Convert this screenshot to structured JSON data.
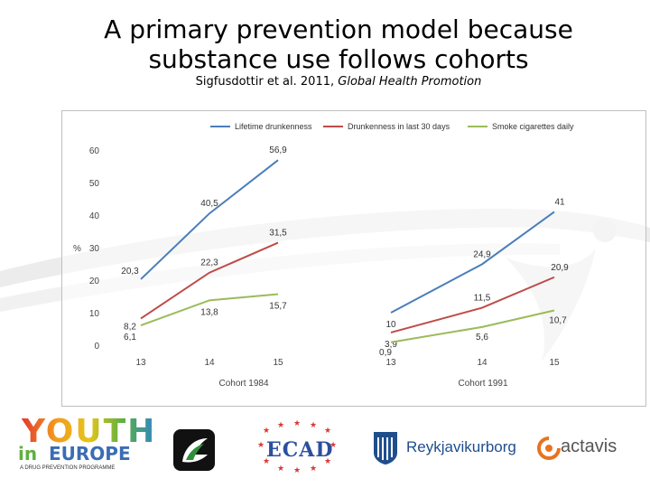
{
  "slide": {
    "title_line1": "A primary prevention model because",
    "title_line2": "substance use follows cohorts",
    "citation_authors": "Sigfusdottir et al. 2011,",
    "citation_journal": "Global Health Promotion"
  },
  "chart_data": {
    "type": "line",
    "title": "",
    "ylabel": "%",
    "ylim": [
      0,
      60
    ],
    "yticks": [
      "0",
      "10",
      "20",
      "30",
      "40",
      "50",
      "60"
    ],
    "legend_position": "top",
    "groups": [
      {
        "label": "Cohort 1984",
        "categories": [
          "13",
          "14",
          "15"
        ]
      },
      {
        "label": "Cohort 1991",
        "categories": [
          "13",
          "14",
          "15"
        ]
      }
    ],
    "series": [
      {
        "name": "Lifetime drunkenness",
        "color": "#4a7ebb",
        "groups": [
          {
            "values": [
              20.3,
              40.5,
              56.9
            ],
            "labels": [
              "20,3",
              "40,5",
              "56,9"
            ]
          },
          {
            "values": [
              10,
              24.9,
              41
            ],
            "labels": [
              "10",
              "24,9",
              "41"
            ]
          }
        ]
      },
      {
        "name": "Drunkenness in last 30 days",
        "color": "#be4b48",
        "groups": [
          {
            "values": [
              8.2,
              22.3,
              31.5
            ],
            "labels": [
              "8,2",
              "22,3",
              "31,5"
            ]
          },
          {
            "values": [
              3.9,
              11.5,
              20.9
            ],
            "labels": [
              "3,9",
              "11,5",
              "20,9"
            ]
          }
        ]
      },
      {
        "name": "Smoke cigarettes daily",
        "color": "#9bbb59",
        "groups": [
          {
            "values": [
              6.1,
              13.8,
              15.7
            ],
            "labels": [
              "6,1",
              "13,8",
              "15,7"
            ]
          },
          {
            "values": [
              0.9,
              5.6,
              10.7
            ],
            "labels": [
              "0,9",
              "5,6",
              "10,7"
            ]
          }
        ]
      }
    ]
  },
  "logos": {
    "youth_word": "YOUTH",
    "in_word": "in",
    "europe_word": "EUROPE",
    "youth_tagline": "A DRUG PREVENTION PROGRAMME",
    "ecad_text": "ECAD",
    "reykjavik_text": "Reykjavikurborg",
    "actavis_text": "actavis"
  }
}
